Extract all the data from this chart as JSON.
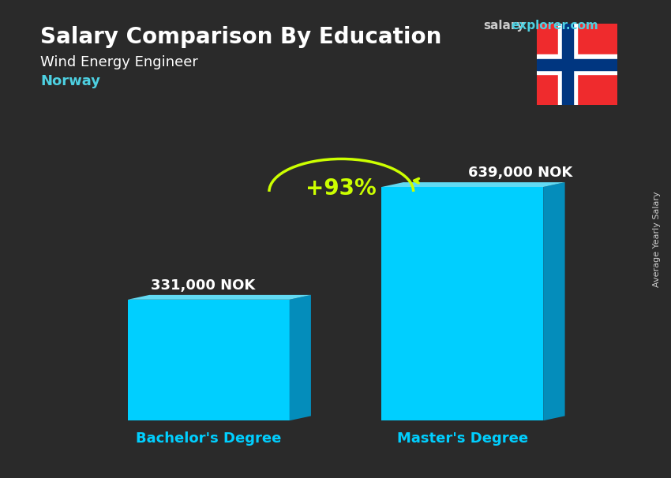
{
  "title_bold": "Salary Comparison By Education",
  "subtitle": "Wind Energy Engineer",
  "country": "Norway",
  "site_salary": "salary",
  "site_explorer": "explorer.com",
  "categories": [
    "Bachelor's Degree",
    "Master's Degree"
  ],
  "values": [
    331000,
    639000
  ],
  "value_labels": [
    "331,000 NOK",
    "639,000 NOK"
  ],
  "pct_change": "+93%",
  "bar_color_face": "#00cfff",
  "bar_color_dark": "#0099cc",
  "bar_color_top": "#66e5ff",
  "background_color": "#3a3a3a",
  "title_color": "#ffffff",
  "subtitle_color": "#ffffff",
  "country_color": "#4dd0e1",
  "xlabel_color": "#00cfff",
  "value_label_color": "#ffffff",
  "pct_color": "#ccff00",
  "arrow_color": "#ccff00",
  "rotated_label": "Average Yearly Salary",
  "rotated_label_color": "#cccccc"
}
